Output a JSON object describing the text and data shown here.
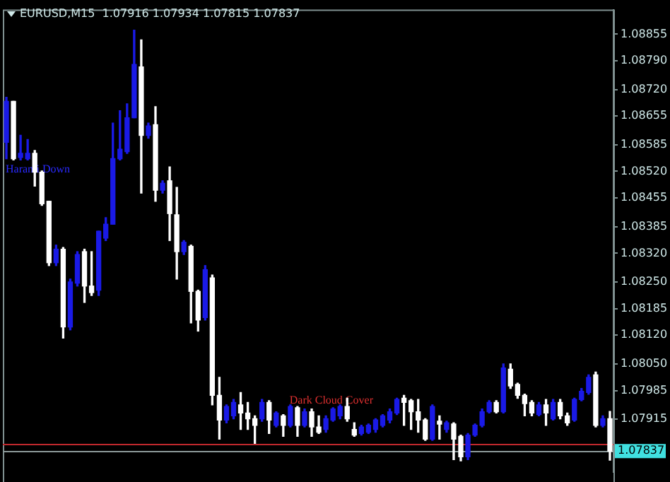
{
  "chart_data": {
    "type": "candlestick",
    "title": "EURUSD,M15  1.07916 1.07934 1.07815 1.07837",
    "categories": [
      null,
      null,
      null,
      null,
      null,
      null,
      null,
      null,
      null,
      null,
      null,
      null,
      null,
      null,
      null,
      null,
      null,
      null,
      null,
      null,
      null,
      null,
      null,
      null,
      null,
      null,
      null,
      null,
      null,
      null,
      null,
      null,
      null,
      null,
      null,
      null,
      null,
      null,
      null,
      null,
      null,
      null,
      null,
      null,
      null,
      null,
      null,
      null,
      null,
      null,
      null,
      null,
      null,
      null,
      null,
      null,
      null,
      null,
      null,
      null,
      null,
      null,
      null,
      null,
      null,
      null,
      null,
      null,
      null,
      null,
      null,
      null,
      null,
      null,
      null,
      null,
      null,
      null,
      null,
      null,
      null,
      null,
      null,
      null,
      null,
      null
    ],
    "ohlc": [
      [
        1.08591,
        1.08701,
        1.08551,
        1.08691
      ],
      [
        1.08691,
        1.08691,
        1.08548,
        1.08551
      ],
      [
        1.08554,
        1.08608,
        1.08548,
        1.08564
      ],
      [
        1.08551,
        1.08598,
        1.08548,
        1.08564
      ],
      [
        1.08564,
        1.08571,
        1.08484,
        1.08518
      ],
      [
        1.08518,
        1.08521,
        1.08437,
        1.08441
      ],
      [
        1.08447,
        1.08447,
        1.0829,
        1.08297
      ],
      [
        1.08297,
        1.0834,
        1.0829,
        1.0833
      ],
      [
        1.0833,
        1.08334,
        1.08113,
        1.0814
      ],
      [
        1.0814,
        1.08257,
        1.08133,
        1.0825
      ],
      [
        1.08247,
        1.08324,
        1.0824,
        1.08317
      ],
      [
        1.08324,
        1.0833,
        1.082,
        1.0824
      ],
      [
        1.0824,
        1.08324,
        1.08217,
        1.08224
      ],
      [
        1.0823,
        1.08374,
        1.08217,
        1.08374
      ],
      [
        1.08357,
        1.08407,
        1.08351,
        1.08391
      ],
      [
        1.08391,
        1.08638,
        1.08391,
        1.08551
      ],
      [
        1.08551,
        1.08668,
        1.08548,
        1.08574
      ],
      [
        1.08568,
        1.08685,
        1.08564,
        1.08651
      ],
      [
        1.08651,
        1.08865,
        1.08651,
        1.08781
      ],
      [
        1.08775,
        1.08841,
        1.08467,
        1.08608
      ],
      [
        1.08608,
        1.08638,
        1.08601,
        1.08631
      ],
      [
        1.08634,
        1.08678,
        1.08447,
        1.08474
      ],
      [
        1.08474,
        1.08497,
        1.08467,
        1.08491
      ],
      [
        1.08497,
        1.08531,
        1.08351,
        1.08417
      ],
      [
        1.08414,
        1.08481,
        1.08257,
        1.08324
      ],
      [
        1.08324,
        1.08351,
        1.08317,
        1.08347
      ],
      [
        1.08337,
        1.0834,
        1.0815,
        1.08227
      ],
      [
        1.08227,
        1.0823,
        1.0813,
        1.08157
      ],
      [
        1.08163,
        1.0829,
        1.08157,
        1.0828
      ],
      [
        1.0826,
        1.08267,
        1.0795,
        1.07973
      ],
      [
        1.07973,
        1.08017,
        1.07866,
        1.07913
      ],
      [
        1.07913,
        1.0795,
        1.07906,
        1.07946
      ],
      [
        1.07923,
        1.07963,
        1.07916,
        1.07956
      ],
      [
        1.0795,
        1.0798,
        1.0789,
        1.0793
      ],
      [
        1.0793,
        1.07956,
        1.0789,
        1.07916
      ],
      [
        1.07916,
        1.07923,
        1.07856,
        1.079
      ],
      [
        1.07916,
        1.07963,
        1.0791,
        1.07956
      ],
      [
        1.07956,
        1.0796,
        1.0788,
        1.07913
      ],
      [
        1.079,
        1.07933,
        1.07896,
        1.0793
      ],
      [
        1.07923,
        1.07926,
        1.07873,
        1.079
      ],
      [
        1.079,
        1.0795,
        1.07896,
        1.07946
      ],
      [
        1.07943,
        1.07946,
        1.07873,
        1.079
      ],
      [
        1.079,
        1.0794,
        1.07896,
        1.07933
      ],
      [
        1.07933,
        1.0794,
        1.07873,
        1.07896
      ],
      [
        1.07896,
        1.07923,
        1.0788,
        1.07883
      ],
      [
        1.0789,
        1.07923,
        1.07883,
        1.07916
      ],
      [
        1.07913,
        1.07943,
        1.0791,
        1.0794
      ],
      [
        1.07923,
        1.0795,
        1.07916,
        1.07946
      ],
      [
        1.07946,
        1.07966,
        1.0791,
        1.07916
      ],
      [
        1.0789,
        1.07906,
        1.07873,
        1.07876
      ],
      [
        1.0788,
        1.079,
        1.07876,
        1.07896
      ],
      [
        1.07883,
        1.07903,
        1.0788,
        1.079
      ],
      [
        1.0789,
        1.07916,
        1.07883,
        1.07913
      ],
      [
        1.079,
        1.07926,
        1.07896,
        1.07923
      ],
      [
        1.07913,
        1.0794,
        1.07906,
        1.07933
      ],
      [
        1.0793,
        1.07966,
        1.07926,
        1.07963
      ],
      [
        1.07966,
        1.07973,
        1.079,
        1.07956
      ],
      [
        1.0796,
        1.07963,
        1.0789,
        1.07933
      ],
      [
        1.07933,
        1.07963,
        1.07883,
        1.07913
      ],
      [
        1.07913,
        1.07916,
        1.07863,
        1.07866
      ],
      [
        1.07866,
        1.0795,
        1.07863,
        1.07946
      ],
      [
        1.0791,
        1.07923,
        1.07866,
        1.07903
      ],
      [
        1.0789,
        1.0791,
        1.07883,
        1.07906
      ],
      [
        1.07903,
        1.07906,
        1.07816,
        1.07866
      ],
      [
        1.07873,
        1.07876,
        1.07813,
        1.07823
      ],
      [
        1.07823,
        1.0788,
        1.07816,
        1.07876
      ],
      [
        1.07876,
        1.07903,
        1.07873,
        1.079
      ],
      [
        1.079,
        1.0794,
        1.07896,
        1.07933
      ],
      [
        1.07933,
        1.0796,
        1.0793,
        1.07956
      ],
      [
        1.07956,
        1.0796,
        1.0793,
        1.07933
      ],
      [
        1.07933,
        1.0805,
        1.0793,
        1.0804
      ],
      [
        1.08037,
        1.0805,
        1.0799,
        1.07996
      ],
      [
        1.08,
        1.08003,
        1.07966,
        1.07973
      ],
      [
        1.07973,
        1.07976,
        1.07923,
        1.07953
      ],
      [
        1.07956,
        1.0796,
        1.07923,
        1.0793
      ],
      [
        1.07926,
        1.07956,
        1.07923,
        1.0795
      ],
      [
        1.0795,
        1.07963,
        1.079,
        1.0793
      ],
      [
        1.07916,
        1.07963,
        1.07913,
        1.07956
      ],
      [
        1.07956,
        1.07963,
        1.07916,
        1.07923
      ],
      [
        1.07923,
        1.0793,
        1.079,
        1.07906
      ],
      [
        1.07913,
        1.07966,
        1.0791,
        1.07963
      ],
      [
        1.07963,
        1.0799,
        1.0796,
        1.07983
      ],
      [
        1.0798,
        1.08023,
        1.07976,
        1.08017
      ],
      [
        1.08023,
        1.0803,
        1.07896,
        1.079
      ],
      [
        1.079,
        1.07923,
        1.07896,
        1.07916
      ],
      [
        1.07916,
        1.07934,
        1.07815,
        1.07837
      ]
    ],
    "colors": [
      "#1a1ae6",
      "#ffffff",
      "#1a1ae6",
      "#1a1ae6",
      "#ffffff",
      "#ffffff",
      "#ffffff",
      "#1a1ae6",
      "#ffffff",
      "#1a1ae6",
      "#1a1ae6",
      "#ffffff",
      "#ffffff",
      "#1a1ae6",
      "#1a1ae6",
      "#1a1ae6",
      "#1a1ae6",
      "#1a1ae6",
      "#1a1ae6",
      "#ffffff",
      "#1a1ae6",
      "#ffffff",
      "#1a1ae6",
      "#ffffff",
      "#ffffff",
      "#1a1ae6",
      "#ffffff",
      "#ffffff",
      "#1a1ae6",
      "#ffffff",
      "#ffffff",
      "#1a1ae6",
      "#1a1ae6",
      "#ffffff",
      "#ffffff",
      "#ffffff",
      "#1a1ae6",
      "#ffffff",
      "#1a1ae6",
      "#ffffff",
      "#1a1ae6",
      "#ffffff",
      "#1a1ae6",
      "#ffffff",
      "#ffffff",
      "#1a1ae6",
      "#1a1ae6",
      "#1a1ae6",
      "#ffffff",
      "#ffffff",
      "#1a1ae6",
      "#1a1ae6",
      "#1a1ae6",
      "#1a1ae6",
      "#1a1ae6",
      "#1a1ae6",
      "#ffffff",
      "#ffffff",
      "#ffffff",
      "#ffffff",
      "#1a1ae6",
      "#ffffff",
      "#1a1ae6",
      "#ffffff",
      "#ffffff",
      "#1a1ae6",
      "#1a1ae6",
      "#1a1ae6",
      "#1a1ae6",
      "#ffffff",
      "#1a1ae6",
      "#ffffff",
      "#ffffff",
      "#ffffff",
      "#ffffff",
      "#1a1ae6",
      "#ffffff",
      "#1a1ae6",
      "#ffffff",
      "#ffffff",
      "#1a1ae6",
      "#1a1ae6",
      "#1a1ae6",
      "#ffffff",
      "#1a1ae6",
      "#ffffff"
    ],
    "ylim": [
      1.07785,
      1.08915
    ],
    "yticks": [
      1.08855,
      {
        "value": 1.0879,
        "label": "1.08790"
      },
      {
        "value": 1.0872,
        "label": "1.08720"
      },
      1.08655,
      1.08585,
      {
        "value": 1.0852,
        "label": "1.08520"
      },
      1.08455,
      1.08385,
      {
        "value": 1.0832,
        "label": "1.08320"
      },
      {
        "value": 1.0825,
        "label": "1.08250"
      },
      1.08185,
      {
        "value": 1.0812,
        "label": "1.08120"
      },
      {
        "value": 1.0805,
        "label": "1.08050"
      },
      1.07985,
      1.07915
    ],
    "ref_lines": [
      {
        "axis": "y",
        "value": 1.07856,
        "color": "#c0282d"
      },
      {
        "axis": "y",
        "value": 1.07837,
        "label": "1.07837",
        "color": "#8c9a9a"
      }
    ],
    "annotations": [
      "Harami Down",
      "Dark Cloud Cover"
    ],
    "grid": false,
    "legend": false
  }
}
